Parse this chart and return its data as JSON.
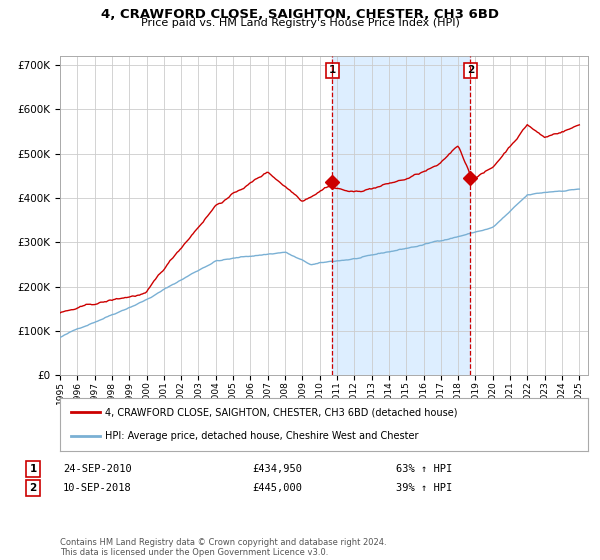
{
  "title": "4, CRAWFORD CLOSE, SAIGHTON, CHESTER, CH3 6BD",
  "subtitle": "Price paid vs. HM Land Registry's House Price Index (HPI)",
  "title_fontsize": 9.5,
  "subtitle_fontsize": 8,
  "ylabel_red": "4, CRAWFORD CLOSE, SAIGHTON, CHESTER, CH3 6BD (detached house)",
  "ylabel_blue": "HPI: Average price, detached house, Cheshire West and Chester",
  "ylim": [
    0,
    720000
  ],
  "yticks": [
    0,
    100000,
    200000,
    300000,
    400000,
    500000,
    600000,
    700000
  ],
  "ytick_labels": [
    "£0",
    "£100K",
    "£200K",
    "£300K",
    "£400K",
    "£500K",
    "£600K",
    "£700K"
  ],
  "red_color": "#cc0000",
  "blue_color": "#7ab0d4",
  "shading_color": "#ddeeff",
  "vline_color": "#cc0000",
  "background_color": "#ffffff",
  "grid_color": "#cccccc",
  "sale1": {
    "date_num": 2010.73,
    "price": 434950,
    "label": "1",
    "date_str": "24-SEP-2010",
    "pct": "63%"
  },
  "sale2": {
    "date_num": 2018.7,
    "price": 445000,
    "label": "2",
    "date_str": "10-SEP-2018",
    "pct": "39%"
  },
  "footnote": "Contains HM Land Registry data © Crown copyright and database right 2024.\nThis data is licensed under the Open Government Licence v3.0.",
  "xlim_start": 1995,
  "xlim_end": 2025.5
}
